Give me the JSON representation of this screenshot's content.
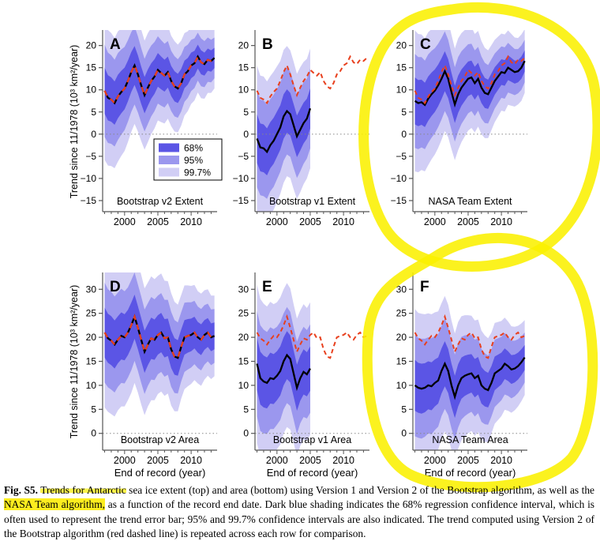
{
  "figure": {
    "y_axis_label": "Trend since 11/1978 (10³ km²/year)",
    "x_axis_label": "End of record (year)",
    "caption": {
      "segments": [
        {
          "text": "Fig. S5.",
          "bold": true
        },
        {
          "text": " ",
          "bold": false
        },
        {
          "text": "Trends for Antarctic",
          "highlight": "smear"
        },
        {
          "text": " sea ice extent (top) and area (bottom) using Version 1 and Version 2 of the Bootstrap algorithm, as well as the "
        },
        {
          "text": "NASA Team algorithm,",
          "highlight": "full"
        },
        {
          "text": " as a function of the record end date. Dark blue shading indicates the 68% regression confidence interval, which is often used to represent the trend error bar; 95% and 99.7% confidence intervals are also indicated. The trend computed using Version 2 of the Bootstrap algorithm (red dashed line) is repeated across each row for comparison."
        }
      ]
    }
  },
  "legend": {
    "entries": [
      {
        "label": "68%",
        "color": "#5B55E5"
      },
      {
        "label": "95%",
        "color": "#9B97EE"
      },
      {
        "label": "99.7%",
        "color": "#D1CEF5"
      }
    ]
  },
  "colors": {
    "band_68": "#5B55E5",
    "band_95": "#9B97EE",
    "band_997": "#D1CEF5",
    "reference_line": "#E8401E",
    "trend_line": "#000000",
    "zero_line": "#888888",
    "axis": "#555555",
    "highlighter": "#FAF000",
    "caption_highlight": "#FCEB00"
  },
  "annotations": {
    "circled_panels": [
      "C",
      "F"
    ],
    "highlighted_caption_text": [
      "Trends for Antarctic",
      "NASA Team algorithm,"
    ]
  },
  "chart_data": {
    "type": "line",
    "x_range": [
      1996.7,
      2013.9
    ],
    "x_ticks": [
      2000,
      2005,
      2010
    ],
    "x_minor_ticks_every": 1,
    "x_label": "End of record (year)",
    "y_label": "Trend since 11/1978 (10³ km²/year)",
    "legend_position": "panel A lower right",
    "grid": false,
    "bands": [
      {
        "label": "68%",
        "sigma_mult": 1,
        "color": "#5B55E5"
      },
      {
        "label": "95%",
        "sigma_mult": 2,
        "color": "#9B97EE"
      },
      {
        "label": "99.7%",
        "sigma_mult": 3,
        "color": "#D1CEF5"
      }
    ],
    "x_full": [
      1997,
      1997.5,
      1998,
      1998.5,
      1999,
      1999.5,
      2000,
      2000.5,
      2001,
      2001.5,
      2002,
      2002.5,
      2003,
      2003.5,
      2004,
      2004.5,
      2005,
      2005.5,
      2006,
      2006.5,
      2007,
      2007.5,
      2008,
      2008.5,
      2009,
      2009.5,
      2010,
      2010.5,
      2011,
      2011.5,
      2012,
      2012.5,
      2013,
      2013.5
    ],
    "x_v1": [
      1997,
      1997.5,
      1998,
      1998.5,
      1999,
      1999.5,
      2000,
      2000.5,
      2001,
      2001.5,
      2002,
      2002.5,
      2003,
      2003.5,
      2004,
      2004.5,
      2005
    ],
    "panels": [
      {
        "letter": "A",
        "title": "Bootstrap v2 Extent",
        "row": 0,
        "x": "x_full",
        "ylim": [
          -17.5,
          23.5
        ],
        "y_ticks": [
          -15,
          -10,
          -5,
          0,
          5,
          10,
          15,
          20
        ],
        "is_reference": true,
        "show_legend": true,
        "trend": [
          9.8,
          8.2,
          7.8,
          7.0,
          8.5,
          9.5,
          10.3,
          12.0,
          14.0,
          15.5,
          13.5,
          11.0,
          8.8,
          10.5,
          12.0,
          13.0,
          14.5,
          13.8,
          13.2,
          14.0,
          12.0,
          10.8,
          10.3,
          11.5,
          13.5,
          14.2,
          15.5,
          16.0,
          17.5,
          16.2,
          15.8,
          16.8,
          16.5,
          17.2
        ],
        "sigma": [
          5.2,
          5.1,
          5.0,
          4.9,
          4.9,
          4.8,
          4.7,
          4.6,
          4.5,
          4.4,
          4.3,
          4.2,
          4.1,
          4.1,
          4.0,
          3.9,
          3.8,
          3.7,
          3.6,
          3.5,
          3.4,
          3.4,
          3.3,
          3.2,
          3.1,
          3.0,
          2.9,
          2.8,
          2.7,
          2.7,
          2.6,
          2.5,
          2.4,
          2.3
        ]
      },
      {
        "letter": "B",
        "title": "Bootstrap v1 Extent",
        "row": 0,
        "x": "x_v1",
        "ylim": [
          -17.5,
          23.5
        ],
        "y_ticks": [
          -15,
          -10,
          -5,
          0,
          5,
          10,
          15,
          20
        ],
        "is_reference": false,
        "show_legend": false,
        "trend": [
          -1.0,
          -3.0,
          -3.2,
          -4.0,
          -2.5,
          -1.5,
          0.0,
          1.5,
          4.0,
          5.2,
          4.5,
          2.0,
          -0.5,
          1.0,
          2.5,
          3.5,
          5.8
        ],
        "sigma": [
          5.5,
          5.4,
          5.4,
          5.3,
          5.2,
          5.2,
          5.1,
          5.0,
          5.0,
          4.9,
          4.8,
          4.8,
          4.7,
          4.7,
          4.6,
          4.5,
          4.5
        ]
      },
      {
        "letter": "C",
        "title": "NASA Team Extent",
        "row": 0,
        "x": "x_full",
        "ylim": [
          -17.5,
          23.5
        ],
        "y_ticks": [
          -15,
          -10,
          -5,
          0,
          5,
          10,
          15,
          20
        ],
        "is_reference": false,
        "show_legend": false,
        "trend": [
          7.5,
          7.0,
          7.2,
          6.6,
          8.0,
          9.0,
          9.8,
          11.0,
          12.5,
          14.2,
          12.5,
          9.5,
          6.7,
          9.0,
          10.5,
          11.5,
          12.5,
          12.8,
          11.5,
          12.5,
          10.5,
          9.3,
          9.0,
          10.5,
          12.0,
          13.0,
          14.0,
          13.8,
          15.0,
          14.5,
          14.0,
          14.2,
          15.0,
          16.5
        ],
        "sigma": [
          5.3,
          5.2,
          5.1,
          5.0,
          5.0,
          4.9,
          4.8,
          4.7,
          4.6,
          4.5,
          4.4,
          4.3,
          4.2,
          4.2,
          4.1,
          4.0,
          3.9,
          3.8,
          3.7,
          3.6,
          3.5,
          3.4,
          3.3,
          3.2,
          3.1,
          3.0,
          2.9,
          2.9,
          2.8,
          2.7,
          2.6,
          2.5,
          2.5,
          2.4
        ]
      },
      {
        "letter": "D",
        "title": "Bootstrap v2 Area",
        "row": 1,
        "x": "x_full",
        "ylim": [
          -3.5,
          33.5
        ],
        "y_ticks": [
          0,
          5,
          10,
          15,
          20,
          25,
          30
        ],
        "is_reference": true,
        "show_legend": false,
        "trend": [
          21.0,
          19.8,
          19.3,
          18.5,
          19.5,
          20.3,
          20.0,
          21.0,
          22.5,
          24.3,
          22.0,
          19.5,
          17.0,
          18.5,
          19.8,
          19.5,
          20.5,
          21.0,
          19.8,
          20.0,
          17.5,
          16.0,
          15.7,
          18.0,
          20.0,
          20.3,
          20.5,
          21.0,
          20.0,
          19.5,
          20.5,
          21.0,
          20.0,
          20.3
        ],
        "sigma": [
          5.2,
          5.1,
          5.1,
          5.0,
          4.9,
          4.9,
          4.8,
          4.7,
          4.7,
          4.6,
          4.5,
          4.5,
          4.4,
          4.3,
          4.3,
          4.2,
          4.1,
          4.1,
          4.0,
          3.9,
          3.9,
          3.8,
          3.7,
          3.6,
          3.6,
          3.5,
          3.4,
          3.3,
          3.2,
          3.2,
          3.1,
          3.0,
          2.9,
          2.8
        ]
      },
      {
        "letter": "E",
        "title": "Bootstrap v1 Area",
        "row": 1,
        "x": "x_v1",
        "ylim": [
          -3.5,
          33.5
        ],
        "y_ticks": [
          0,
          5,
          10,
          15,
          20,
          25,
          30
        ],
        "is_reference": false,
        "show_legend": false,
        "trend": [
          14.5,
          11.5,
          10.8,
          10.5,
          11.5,
          11.3,
          12.0,
          13.0,
          15.0,
          16.3,
          15.5,
          12.5,
          9.5,
          11.5,
          12.8,
          12.3,
          13.5
        ],
        "sigma": [
          5.5,
          5.5,
          5.4,
          5.3,
          5.3,
          5.2,
          5.1,
          5.1,
          5.0,
          5.0,
          4.9,
          4.8,
          4.8,
          4.7,
          4.7,
          4.6,
          4.6
        ]
      },
      {
        "letter": "F",
        "title": "NASA Team Area",
        "row": 1,
        "x": "x_full",
        "ylim": [
          -3.5,
          33.5
        ],
        "y_ticks": [
          0,
          5,
          10,
          15,
          20,
          25,
          30
        ],
        "is_reference": false,
        "show_legend": false,
        "trend": [
          10.0,
          9.5,
          9.3,
          9.5,
          10.0,
          9.8,
          10.5,
          11.0,
          13.0,
          14.5,
          13.0,
          10.0,
          7.6,
          10.0,
          11.5,
          12.0,
          12.3,
          12.5,
          11.5,
          12.0,
          10.0,
          9.3,
          9.0,
          10.5,
          12.5,
          13.0,
          13.5,
          14.5,
          14.0,
          13.3,
          13.5,
          14.0,
          14.8,
          15.8
        ],
        "sigma": [
          5.3,
          5.2,
          5.2,
          5.1,
          5.0,
          5.0,
          4.9,
          4.8,
          4.7,
          4.7,
          4.6,
          4.5,
          4.4,
          4.4,
          4.3,
          4.2,
          4.1,
          4.0,
          4.0,
          3.9,
          3.8,
          3.7,
          3.6,
          3.5,
          3.5,
          3.4,
          3.3,
          3.2,
          3.1,
          3.0,
          2.9,
          2.8,
          2.7,
          2.6
        ]
      }
    ]
  }
}
